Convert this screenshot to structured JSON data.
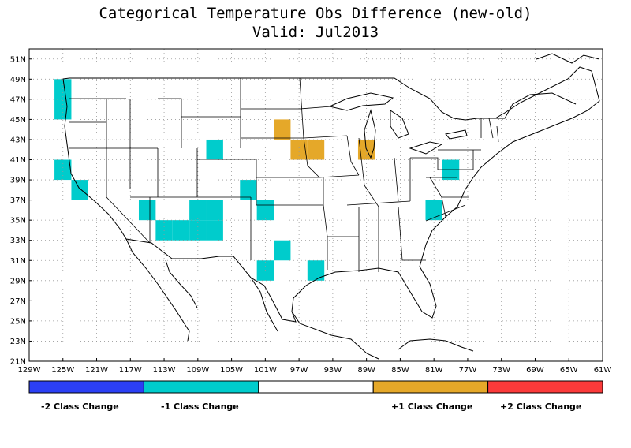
{
  "title": "Categorical Temperature Obs Difference (new-old)",
  "subtitle": "Valid: Jul2013",
  "axes": {
    "lat_labels": [
      "51N",
      "49N",
      "47N",
      "45N",
      "43N",
      "41N",
      "39N",
      "37N",
      "35N",
      "33N",
      "31N",
      "29N",
      "27N",
      "25N",
      "23N",
      "21N"
    ],
    "lat_values": [
      51,
      49,
      47,
      45,
      43,
      41,
      39,
      37,
      35,
      33,
      31,
      29,
      27,
      25,
      23,
      21
    ],
    "lon_labels": [
      "129W",
      "125W",
      "121W",
      "117W",
      "113W",
      "109W",
      "105W",
      "101W",
      "97W",
      "93W",
      "89W",
      "85W",
      "81W",
      "77W",
      "73W",
      "69W",
      "65W",
      "61W"
    ],
    "lon_values": [
      -129,
      -125,
      -121,
      -117,
      -113,
      -109,
      -105,
      -101,
      -97,
      -93,
      -89,
      -85,
      -81,
      -77,
      -73,
      -69,
      -65,
      -61
    ],
    "lat_range": [
      21,
      52
    ],
    "lon_range": [
      -129,
      -61
    ],
    "grid": "dotted"
  },
  "colors": {
    "minus2": "#2b3ff5",
    "minus1": "#00cccc",
    "zero": "#ffffff",
    "plus1": "#e5a829",
    "plus2": "#fb3a3a"
  },
  "cells": [
    {
      "lon": -125,
      "lat": 48,
      "class": "minus1"
    },
    {
      "lon": -125,
      "lat": 46,
      "class": "minus1"
    },
    {
      "lon": -125,
      "lat": 40,
      "class": "minus1"
    },
    {
      "lon": -123,
      "lat": 38,
      "class": "minus1"
    },
    {
      "lon": -115,
      "lat": 36,
      "class": "minus1"
    },
    {
      "lon": -113,
      "lat": 34,
      "class": "minus1"
    },
    {
      "lon": -111,
      "lat": 34,
      "class": "minus1"
    },
    {
      "lon": -107,
      "lat": 42,
      "class": "minus1"
    },
    {
      "lon": -103,
      "lat": 38,
      "class": "minus1"
    },
    {
      "lon": -109,
      "lat": 36,
      "class": "minus1"
    },
    {
      "lon": -107,
      "lat": 36,
      "class": "minus1"
    },
    {
      "lon": -109,
      "lat": 34,
      "class": "minus1"
    },
    {
      "lon": -107,
      "lat": 34,
      "class": "minus1"
    },
    {
      "lon": -101,
      "lat": 36,
      "class": "minus1"
    },
    {
      "lon": -99,
      "lat": 32,
      "class": "minus1"
    },
    {
      "lon": -101,
      "lat": 30,
      "class": "minus1"
    },
    {
      "lon": -95,
      "lat": 30,
      "class": "minus1"
    },
    {
      "lon": -81,
      "lat": 36,
      "class": "minus1"
    },
    {
      "lon": -79,
      "lat": 40,
      "class": "minus1"
    },
    {
      "lon": -99,
      "lat": 44,
      "class": "plus1"
    },
    {
      "lon": -97,
      "lat": 42,
      "class": "plus1"
    },
    {
      "lon": -95,
      "lat": 42,
      "class": "plus1"
    },
    {
      "lon": -89,
      "lat": 42,
      "class": "plus1"
    }
  ],
  "legend": [
    {
      "label": "-2 Class Change",
      "color_key": "minus2"
    },
    {
      "label": "-1 Class Change",
      "color_key": "minus1"
    },
    {
      "label": "",
      "color_key": "zero"
    },
    {
      "label": "+1 Class Change",
      "color_key": "plus1"
    },
    {
      "label": "+2 Class Change",
      "color_key": "plus2"
    }
  ],
  "legend_labels": {
    "minus2": "-2 Class Change",
    "minus1": "-1 Class Change",
    "plus1": "+1 Class Change",
    "plus2": "+2 Class Change"
  }
}
